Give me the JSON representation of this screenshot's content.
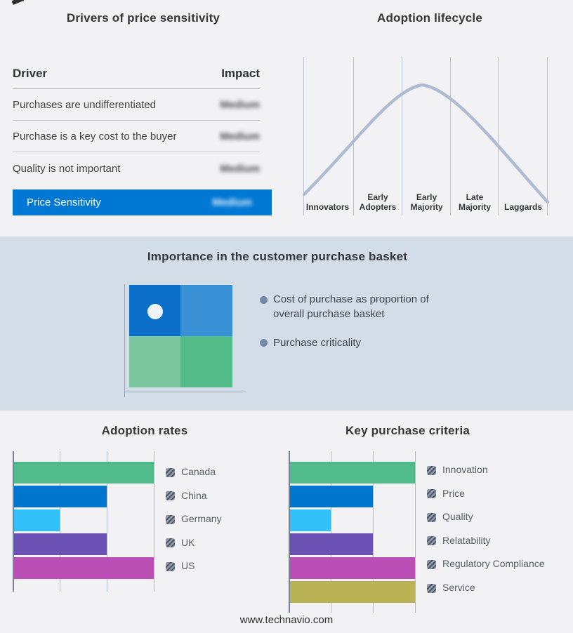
{
  "drivers_panel": {
    "title": "Drivers of price sensitivity",
    "col_driver": "Driver",
    "col_impact": "Impact",
    "rows": [
      {
        "driver": "Purchases are undifferentiated",
        "impact": "Medium"
      },
      {
        "driver": "Purchase is a key cost to the buyer",
        "impact": "Medium"
      },
      {
        "driver": "Quality is not important",
        "impact": "Medium"
      }
    ],
    "highlight_row": {
      "label": "Price Sensitivity",
      "impact": "Medium",
      "color": "#0078d4"
    },
    "impact_values_blurred": true
  },
  "lifecycle_panel": {
    "title": "Adoption lifecycle",
    "stages": [
      "Innovators",
      "Early Adopters",
      "Early Majority",
      "Late Majority",
      "Laggards"
    ],
    "curve_color": "#aebcd2"
  },
  "basket_panel": {
    "title": "Importance in the customer purchase basket",
    "background": "#d3dde8",
    "bullets": [
      "Cost of purchase as proportion of overall purchase basket",
      "Purchase criticality"
    ],
    "quadrant": {
      "top_left": "#0b6fc9",
      "top_right": "#3a91d6",
      "bottom_left": "#7dc59e",
      "bottom_right": "#52bb88",
      "marker": "white dot in top-left quadrant"
    }
  },
  "footer": {
    "url": "www.technavio.com"
  },
  "chart_data": [
    {
      "type": "table",
      "title": "Drivers of price sensitivity",
      "columns": [
        "Driver",
        "Impact"
      ],
      "rows": [
        [
          "Purchases are undifferentiated",
          "Medium"
        ],
        [
          "Purchase is a key cost to the buyer",
          "Medium"
        ],
        [
          "Quality is not important",
          "Medium"
        ],
        [
          "Price Sensitivity",
          "Medium"
        ]
      ],
      "note": "Impact values are shown blurred; last row highlighted in blue #0078d4"
    },
    {
      "type": "line",
      "title": "Adoption lifecycle",
      "x_categories": [
        "Innovators",
        "Early Adopters",
        "Early Majority",
        "Late Majority",
        "Laggards"
      ],
      "shape": "bell curve rising from Innovators, peaking over Early Majority, falling through Laggards",
      "grid": "vertical stage-divider lines only",
      "curve_color": "#aebcd2"
    },
    {
      "type": "bar",
      "orientation": "horizontal",
      "title": "Adoption rates",
      "categories": [
        "Canada",
        "China",
        "Germany",
        "UK",
        "US"
      ],
      "values": [
        3,
        2,
        1,
        2,
        3
      ],
      "value_scale": "relative units; unlabeled gridlines at 1, 2, 3",
      "xlim": [
        0,
        3
      ],
      "colors": [
        "#52bb8b",
        "#0076cf",
        "#31c0f7",
        "#6c51b4",
        "#bb4eb5"
      ],
      "legend_position": "right",
      "legend_swatch": "gray hatched square"
    },
    {
      "type": "bar",
      "orientation": "horizontal",
      "title": "Key purchase criteria",
      "categories": [
        "Innovation",
        "Price",
        "Quality",
        "Relatability",
        "Regulatory Compliance",
        "Service"
      ],
      "values": [
        3,
        2,
        1,
        2,
        3,
        3
      ],
      "value_scale": "relative units; unlabeled gridlines at 1, 2, 3",
      "xlim": [
        0,
        3
      ],
      "colors": [
        "#52bb8b",
        "#0076cf",
        "#31c0f7",
        "#6c51b4",
        "#bb4eb5",
        "#b9b355"
      ],
      "legend_position": "right",
      "legend_swatch": "gray hatched square"
    }
  ]
}
